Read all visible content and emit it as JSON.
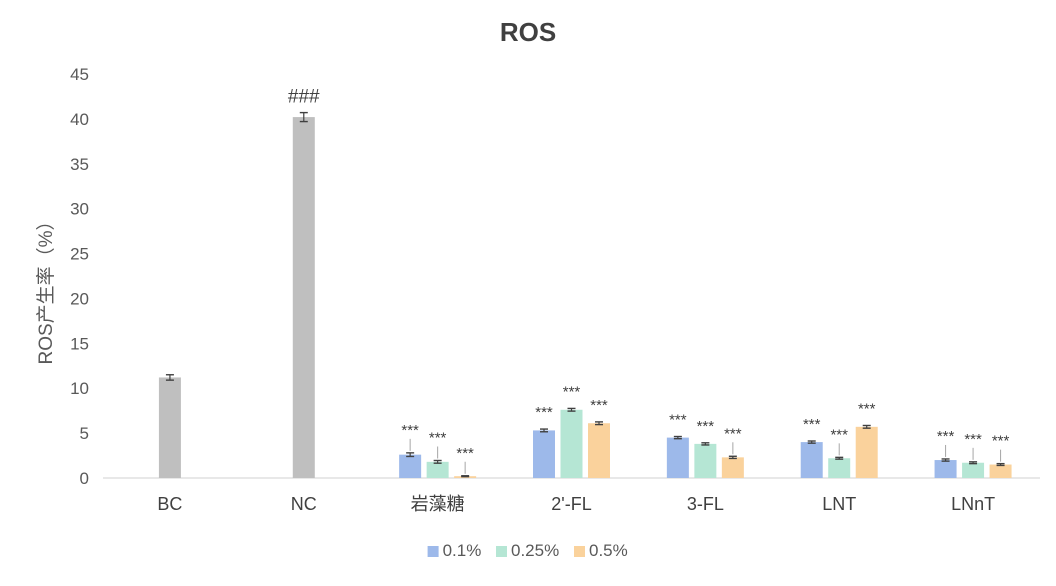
{
  "chart_data": {
    "type": "bar",
    "title": "ROS",
    "ylabel": "ROS产生率（%）",
    "xlabel": "",
    "ylim": [
      0,
      45
    ],
    "ytick_step": 5,
    "yticks": [
      "0",
      "5",
      "10",
      "15",
      "20",
      "25",
      "30",
      "35",
      "40",
      "45"
    ],
    "grid": false,
    "legend_position": "bottom",
    "control_color": "#BFBFBF",
    "errorbar_color": "#404040",
    "controls": [
      {
        "category": "BC",
        "value": 11.2,
        "error": 0.3,
        "annotation": ""
      },
      {
        "category": "NC",
        "value": 40.2,
        "error": 0.5,
        "annotation": "###"
      }
    ],
    "categories": [
      "BC",
      "NC",
      "岩藻糖",
      "2'-FL",
      "3-FL",
      "LNT",
      "LNnT"
    ],
    "series": [
      {
        "name": "0.1%",
        "color": "#9DB9EA",
        "values": {
          "岩藻糖": 2.6,
          "2'-FL": 5.3,
          "3-FL": 4.5,
          "LNT": 4.0,
          "LNnT": 2.0
        },
        "errors": {
          "岩藻糖": 0.2,
          "2'-FL": 0.15,
          "3-FL": 0.12,
          "LNT": 0.12,
          "LNnT": 0.12
        }
      },
      {
        "name": "0.25%",
        "color": "#B5E6D4",
        "values": {
          "岩藻糖": 1.8,
          "2'-FL": 7.6,
          "3-FL": 3.8,
          "LNT": 2.2,
          "LNnT": 1.7
        },
        "errors": {
          "岩藻糖": 0.15,
          "2'-FL": 0.15,
          "3-FL": 0.12,
          "LNT": 0.1,
          "LNnT": 0.1
        }
      },
      {
        "name": "0.5%",
        "color": "#FAD29C",
        "values": {
          "岩藻糖": 0.2,
          "2'-FL": 6.1,
          "3-FL": 2.3,
          "LNT": 5.7,
          "LNnT": 1.5
        },
        "errors": {
          "岩藻糖": 0.05,
          "2'-FL": 0.15,
          "3-FL": 0.12,
          "LNT": 0.15,
          "LNnT": 0.1
        }
      }
    ],
    "treatment_categories": [
      "岩藻糖",
      "2'-FL",
      "3-FL",
      "LNT",
      "LNnT"
    ],
    "significance_label": "***"
  }
}
